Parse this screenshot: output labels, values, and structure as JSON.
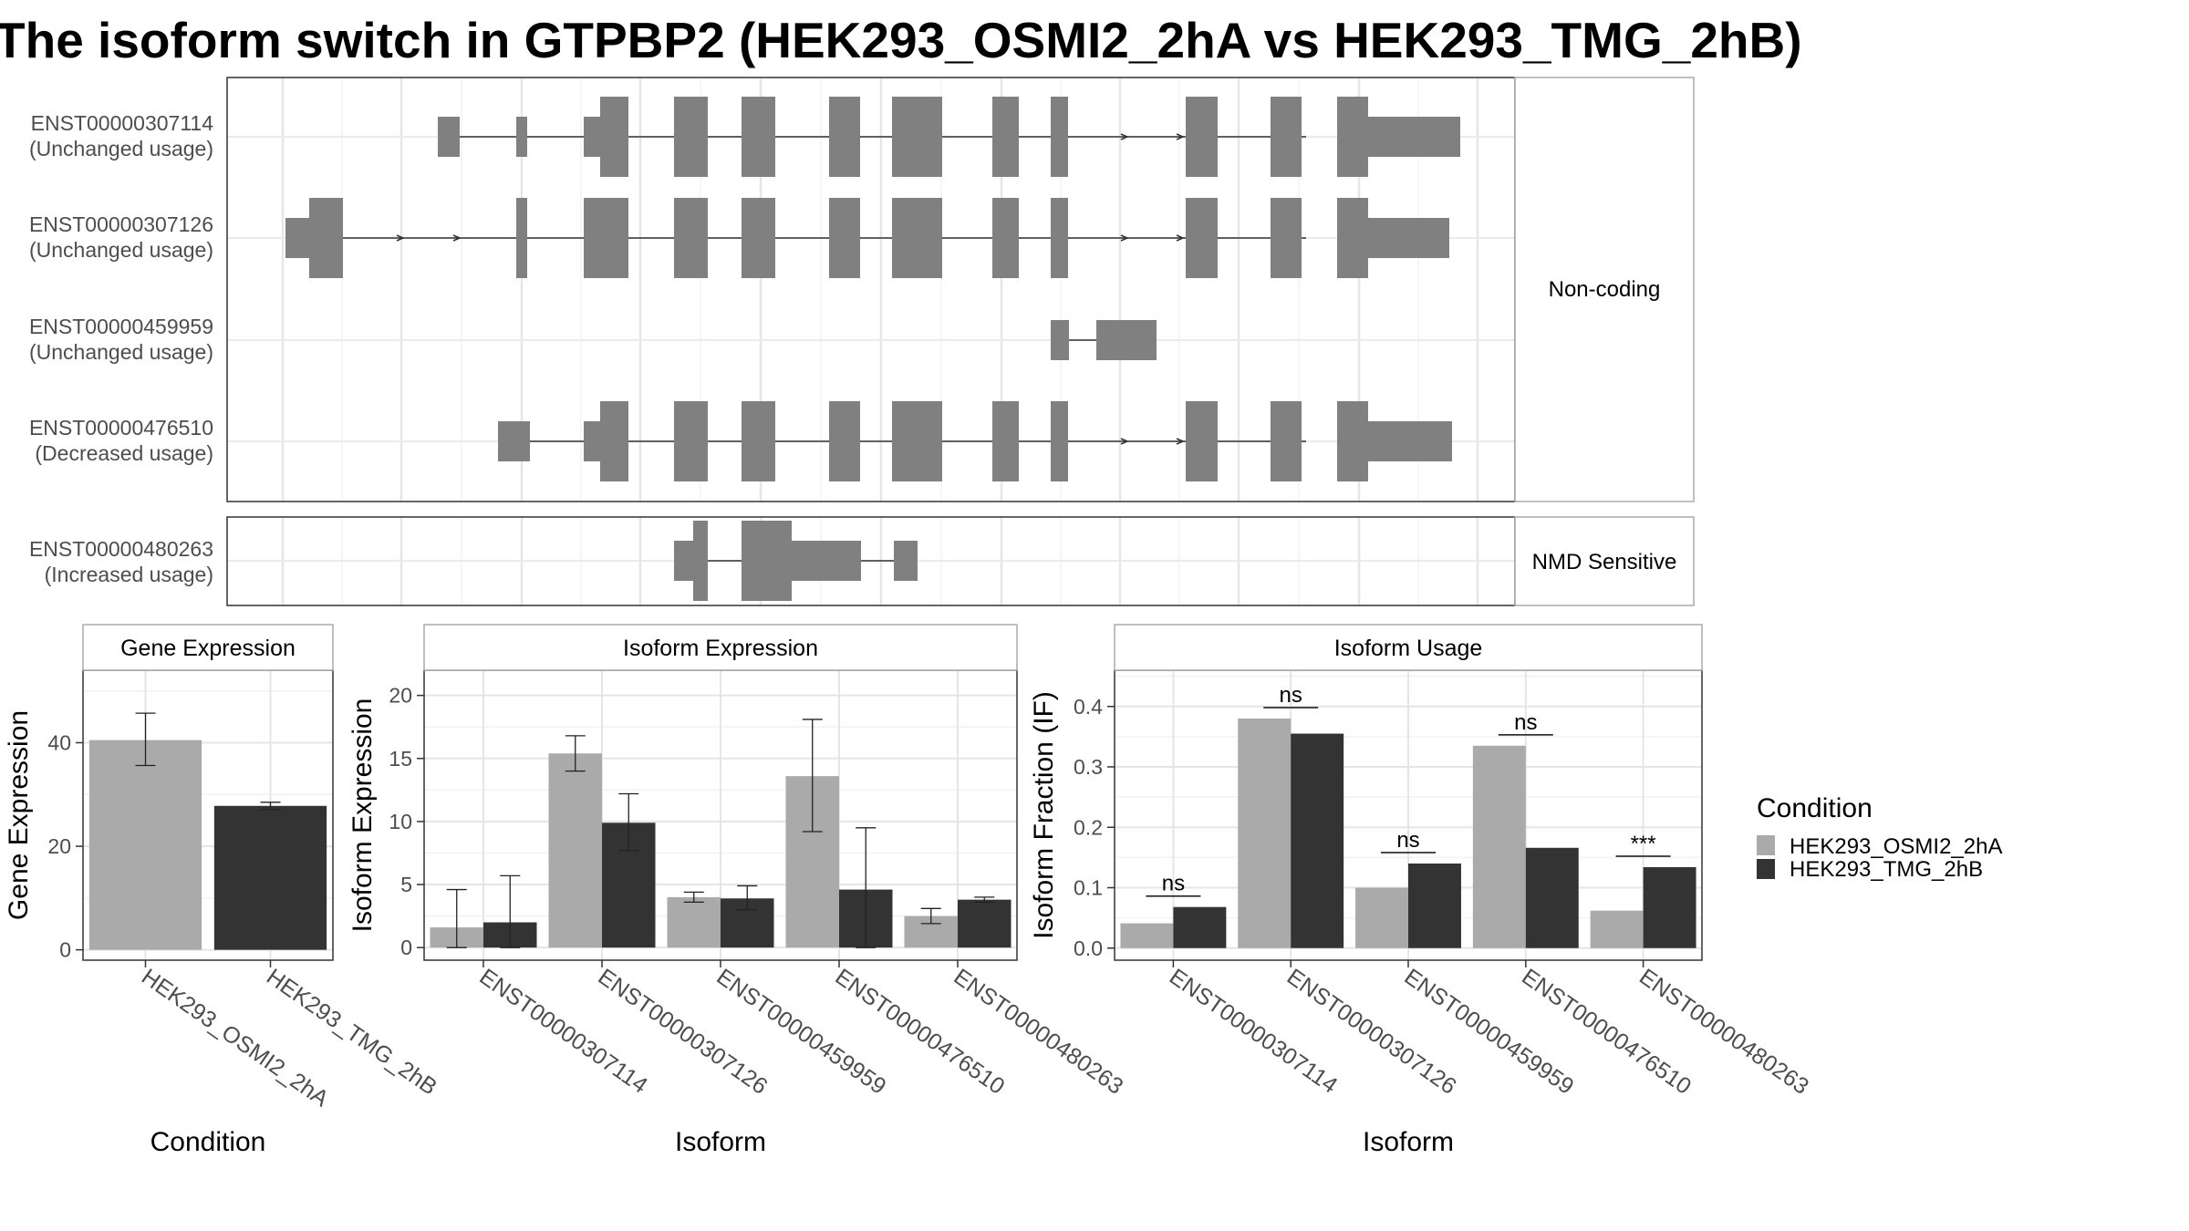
{
  "title": "The isoform switch in GTPBP2 (HEK293_OSMI2_2hA vs HEK293_TMG_2hB)",
  "colors": {
    "cond1": "#aaaaaa",
    "cond2": "#333333",
    "exon": "#808080"
  },
  "structure": {
    "groups": [
      {
        "label": "Non-coding",
        "rows": [
          {
            "id": "ENST00000307114",
            "usage": "(Unchanged usage)"
          },
          {
            "id": "ENST00000307126",
            "usage": "(Unchanged usage)"
          },
          {
            "id": "ENST00000459959",
            "usage": "(Unchanged usage)"
          },
          {
            "id": "ENST00000476510",
            "usage": "(Decreased usage)"
          }
        ]
      },
      {
        "label": "NMD Sensitive",
        "rows": [
          {
            "id": "ENST00000480263",
            "usage": "(Increased usage)"
          }
        ]
      }
    ]
  },
  "legend": {
    "title": "Condition",
    "items": [
      {
        "label": "HEK293_OSMI2_2hA",
        "color": "#aaaaaa"
      },
      {
        "label": "HEK293_TMG_2hB",
        "color": "#333333"
      }
    ]
  },
  "chart_data": [
    {
      "type": "bar",
      "title": "Gene Expression",
      "xlabel": "Condition",
      "ylabel": "Gene Expression",
      "categories": [
        "HEK293_OSMI2_2hA",
        "HEK293_TMG_2hB"
      ],
      "ylim": [
        -2,
        54
      ],
      "yticks": [
        0,
        20,
        40
      ],
      "values": [
        40.5,
        27.8
      ],
      "err_low": [
        35.6,
        27.1
      ],
      "err_high": [
        45.7,
        28.5
      ]
    },
    {
      "type": "bar",
      "title": "Isoform Expression",
      "xlabel": "Isoform",
      "ylabel": "Isoform Expression",
      "categories": [
        "ENST00000307114",
        "ENST00000307126",
        "ENST00000459959",
        "ENST00000476510",
        "ENST00000480263"
      ],
      "ylim": [
        -1,
        22
      ],
      "yticks": [
        0,
        5,
        10,
        15,
        20
      ],
      "series": [
        {
          "name": "HEK293_OSMI2_2hA",
          "values": [
            1.6,
            15.4,
            4.0,
            13.6,
            2.5
          ],
          "err_low": [
            0.0,
            14.0,
            3.6,
            9.2,
            1.9
          ],
          "err_high": [
            4.6,
            16.8,
            4.4,
            18.1,
            3.1
          ]
        },
        {
          "name": "HEK293_TMG_2hB",
          "values": [
            2.0,
            9.9,
            3.9,
            4.6,
            3.8
          ],
          "err_low": [
            0.0,
            7.7,
            3.0,
            0.0,
            3.6
          ],
          "err_high": [
            5.7,
            12.2,
            4.9,
            9.5,
            4.0
          ]
        }
      ]
    },
    {
      "type": "bar",
      "title": "Isoform Usage",
      "xlabel": "Isoform",
      "ylabel": "Isoform Fraction (IF)",
      "categories": [
        "ENST00000307114",
        "ENST00000307126",
        "ENST00000459959",
        "ENST00000476510",
        "ENST00000480263"
      ],
      "ylim": [
        -0.02,
        0.46
      ],
      "yticks": [
        0.0,
        0.1,
        0.2,
        0.3,
        0.4
      ],
      "series": [
        {
          "name": "HEK293_OSMI2_2hA",
          "values": [
            0.041,
            0.38,
            0.1,
            0.335,
            0.062
          ]
        },
        {
          "name": "HEK293_TMG_2hB",
          "values": [
            0.068,
            0.355,
            0.14,
            0.166,
            0.134
          ]
        }
      ],
      "significance": [
        "ns",
        "ns",
        "ns",
        "ns",
        "***"
      ]
    }
  ]
}
